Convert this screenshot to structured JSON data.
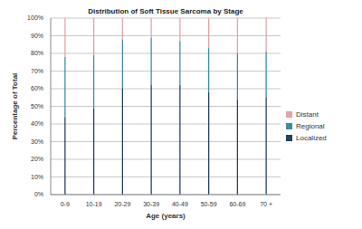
{
  "chart_data": {
    "type": "bar",
    "title": "Distribution of Soft Tissue Sarcoma by Stage",
    "x_label": "Age (years)",
    "y_label": "Percentage of Total",
    "categories": [
      "0-9",
      "10-19",
      "20-29",
      "30-39",
      "40-49",
      "50-59",
      "60-69",
      "70 +"
    ],
    "series": [
      {
        "name": "Localized",
        "color": "#243f60",
        "values": [
          44,
          49,
          60,
          62,
          62,
          58,
          54,
          55
        ]
      },
      {
        "name": "Regional",
        "color": "#3a8ea5",
        "values": [
          34,
          30,
          28,
          27,
          25,
          25,
          26,
          26
        ]
      },
      {
        "name": "Distant",
        "color": "#e4a3aa",
        "values": [
          22,
          21,
          12,
          11,
          13,
          17,
          20,
          19
        ]
      }
    ],
    "stacked": true,
    "ylim": [
      0,
      100
    ],
    "yticks": [
      {
        "value": 0,
        "label": "0%"
      },
      {
        "value": 10,
        "label": "10%"
      },
      {
        "value": 20,
        "label": "20%"
      },
      {
        "value": 30,
        "label": "30%"
      },
      {
        "value": 40,
        "label": "40%"
      },
      {
        "value": 50,
        "label": "50%"
      },
      {
        "value": 60,
        "label": "60%"
      },
      {
        "value": 70,
        "label": "70%"
      },
      {
        "value": 80,
        "label": "80%"
      },
      {
        "value": 90,
        "label": "90%"
      },
      {
        "value": 100,
        "label": "100%"
      }
    ],
    "grid": true,
    "legend": "right"
  }
}
